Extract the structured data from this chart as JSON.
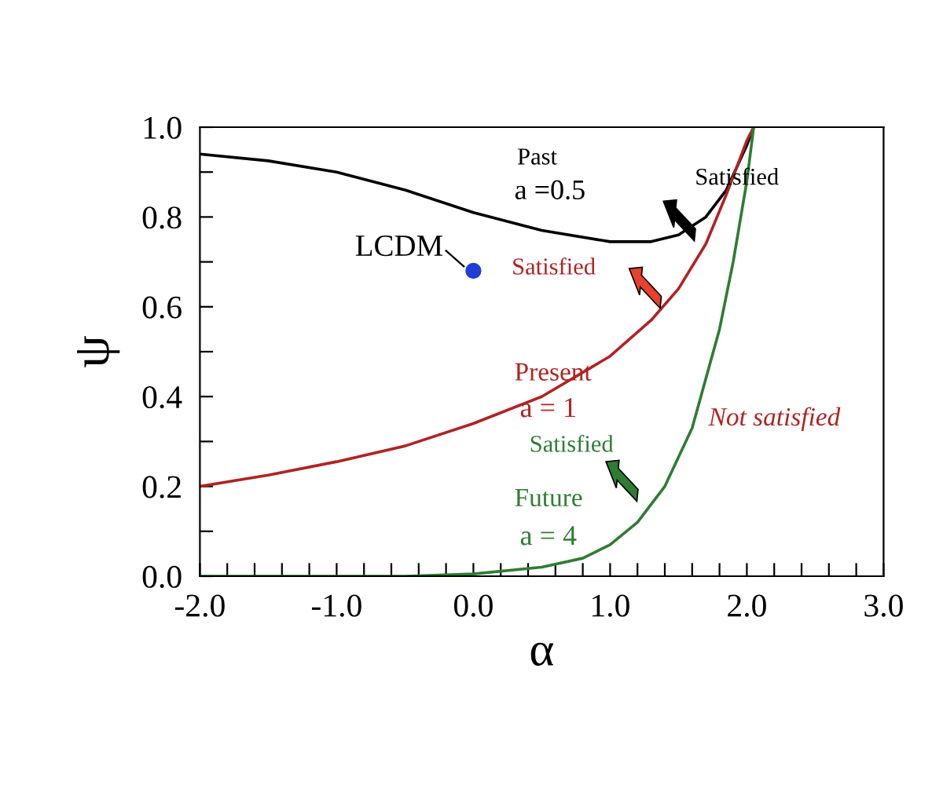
{
  "chart_data": {
    "type": "line",
    "xlabel": "α",
    "ylabel": "ψ",
    "xlim": [
      -2.0,
      3.0
    ],
    "ylim": [
      0.0,
      1.0
    ],
    "xticks": [
      {
        "value": -2.0,
        "label": "-2.0"
      },
      {
        "value": -1.8,
        "label": null
      },
      {
        "value": -1.6,
        "label": null
      },
      {
        "value": -1.4,
        "label": null
      },
      {
        "value": -1.2,
        "label": null
      },
      {
        "value": -1.0,
        "label": "-1.0"
      },
      {
        "value": -0.8,
        "label": null
      },
      {
        "value": -0.6,
        "label": null
      },
      {
        "value": -0.4,
        "label": null
      },
      {
        "value": -0.2,
        "label": null
      },
      {
        "value": 0.0,
        "label": "0.0"
      },
      {
        "value": 0.2,
        "label": null
      },
      {
        "value": 0.4,
        "label": null
      },
      {
        "value": 0.6,
        "label": null
      },
      {
        "value": 0.8,
        "label": null
      },
      {
        "value": 1.0,
        "label": "1.0"
      },
      {
        "value": 1.2,
        "label": null
      },
      {
        "value": 1.4,
        "label": null
      },
      {
        "value": 1.6,
        "label": null
      },
      {
        "value": 1.8,
        "label": null
      },
      {
        "value": 2.0,
        "label": "2.0"
      },
      {
        "value": 2.2,
        "label": null
      },
      {
        "value": 2.4,
        "label": null
      },
      {
        "value": 2.6,
        "label": null
      },
      {
        "value": 2.8,
        "label": null
      },
      {
        "value": 3.0,
        "label": "3.0"
      }
    ],
    "yticks": [
      {
        "value": 0.0,
        "label": "0.0"
      },
      {
        "value": 0.1,
        "label": null
      },
      {
        "value": 0.2,
        "label": "0.2"
      },
      {
        "value": 0.3,
        "label": null
      },
      {
        "value": 0.4,
        "label": "0.4"
      },
      {
        "value": 0.5,
        "label": null
      },
      {
        "value": 0.6,
        "label": "0.6"
      },
      {
        "value": 0.7,
        "label": null
      },
      {
        "value": 0.8,
        "label": "0.8"
      },
      {
        "value": 0.9,
        "label": null
      },
      {
        "value": 1.0,
        "label": "1.0"
      }
    ],
    "grid": false,
    "legend": false,
    "marker": "none",
    "line_style": "solid",
    "series": [
      {
        "color": "#000000",
        "x": [
          -2.0,
          -1.5,
          -1.0,
          -0.5,
          0.0,
          0.5,
          1.0,
          1.3,
          1.5,
          1.7,
          1.85,
          2.0,
          2.05
        ],
        "values": [
          0.94,
          0.925,
          0.9,
          0.86,
          0.81,
          0.77,
          0.745,
          0.745,
          0.76,
          0.8,
          0.86,
          0.96,
          1.0
        ]
      },
      {
        "color": "#b22222",
        "x": [
          -2.0,
          -1.5,
          -1.0,
          -0.5,
          0.0,
          0.5,
          1.0,
          1.3,
          1.5,
          1.7,
          1.85,
          2.0,
          2.05
        ],
        "values": [
          0.2,
          0.225,
          0.255,
          0.29,
          0.34,
          0.4,
          0.49,
          0.57,
          0.64,
          0.74,
          0.85,
          0.97,
          1.0
        ]
      },
      {
        "color": "#2e7d32",
        "x": [
          -2.0,
          -1.0,
          -0.5,
          0.0,
          0.5,
          0.8,
          1.0,
          1.2,
          1.4,
          1.6,
          1.8,
          1.9,
          2.0,
          2.05
        ],
        "values": [
          0.0,
          0.0,
          0.0,
          0.005,
          0.02,
          0.04,
          0.07,
          0.12,
          0.2,
          0.33,
          0.55,
          0.7,
          0.88,
          1.0
        ]
      },
      {
        "type": "scatter",
        "marker": "circle",
        "color": "#1f3fd6",
        "x": [
          0.0
        ],
        "values": [
          0.68
        ]
      }
    ],
    "annotations": [
      "Past",
      "a =0.5",
      "Satisfied",
      "LCDM",
      "Satisfied",
      "Present",
      "a = 1",
      "Not satisfied",
      "Satisfied",
      "Future",
      "a = 4"
    ]
  }
}
